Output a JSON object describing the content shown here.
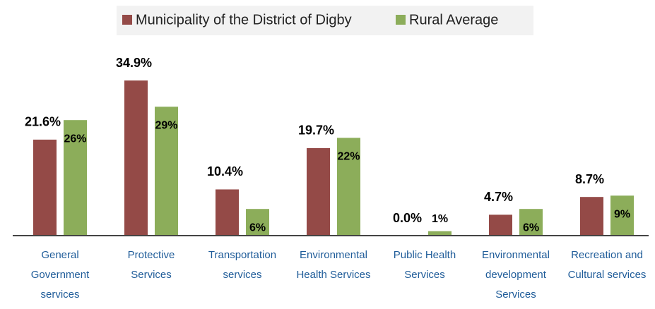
{
  "chart_data": {
    "type": "bar",
    "categories": [
      "General Government services",
      "Protective Services",
      "Transportation services",
      "Environmental Health Services",
      "Public Health Services",
      "Environmental development Services",
      "Recreation and Cultural services"
    ],
    "series": [
      {
        "name": "Municipality of the District of Digby",
        "color": "#944a47",
        "values": [
          21.6,
          34.9,
          10.4,
          19.7,
          0.0,
          4.7,
          8.7
        ],
        "value_labels": [
          "21.6%",
          "34.9%",
          "10.4%",
          "19.7%",
          "0.0%",
          "4.7%",
          "8.7%"
        ]
      },
      {
        "name": "Rural Average",
        "color": "#8cad5a",
        "values": [
          26,
          29,
          6,
          22,
          1,
          6,
          9
        ],
        "value_labels": [
          "26%",
          "29%",
          "6%",
          "22%",
          "1%",
          "6%",
          "9%"
        ]
      }
    ],
    "legend": "top"
  }
}
